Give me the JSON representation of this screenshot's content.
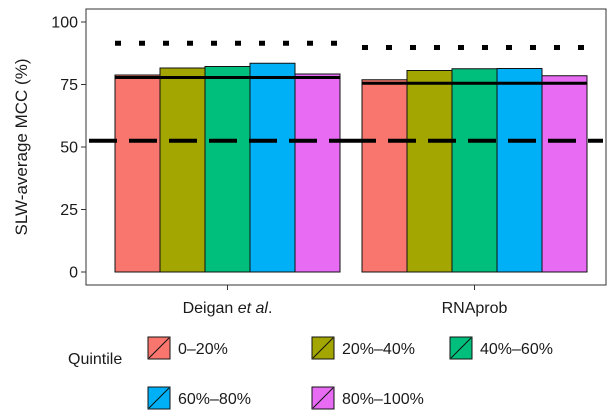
{
  "chart_data": {
    "type": "bar",
    "ylabel": "SLW-average MCC (%)",
    "ylim": [
      0,
      100
    ],
    "yticks": [
      0,
      25,
      50,
      75,
      100
    ],
    "grid": false,
    "categories": [
      {
        "label": "Deigan ",
        "label_italic": "et al",
        "label_suffix": "."
      },
      {
        "label": "RNAprob",
        "label_italic": "",
        "label_suffix": ""
      }
    ],
    "series": [
      {
        "name": "0–20%",
        "color": "#F8766D",
        "values": [
          78.8,
          76.9
        ]
      },
      {
        "name": "20%–40%",
        "color": "#A3A500",
        "values": [
          81.6,
          80.6
        ]
      },
      {
        "name": "40%–60%",
        "color": "#00BF7D",
        "values": [
          82.2,
          81.3
        ]
      },
      {
        "name": "60%–80%",
        "color": "#00B0F6",
        "values": [
          83.5,
          81.4
        ]
      },
      {
        "name": "80%–100%",
        "color": "#E76BF3",
        "values": [
          79.2,
          78.5
        ]
      }
    ],
    "reference_lines": [
      {
        "style": "dotted",
        "values": [
          91.5,
          89.8
        ]
      },
      {
        "style": "solid",
        "values": [
          77.8,
          75.5
        ]
      },
      {
        "style": "dashed",
        "values": [
          52.5,
          52.5
        ]
      }
    ],
    "legend": {
      "title": "Quintile",
      "placement": "bottom"
    }
  }
}
